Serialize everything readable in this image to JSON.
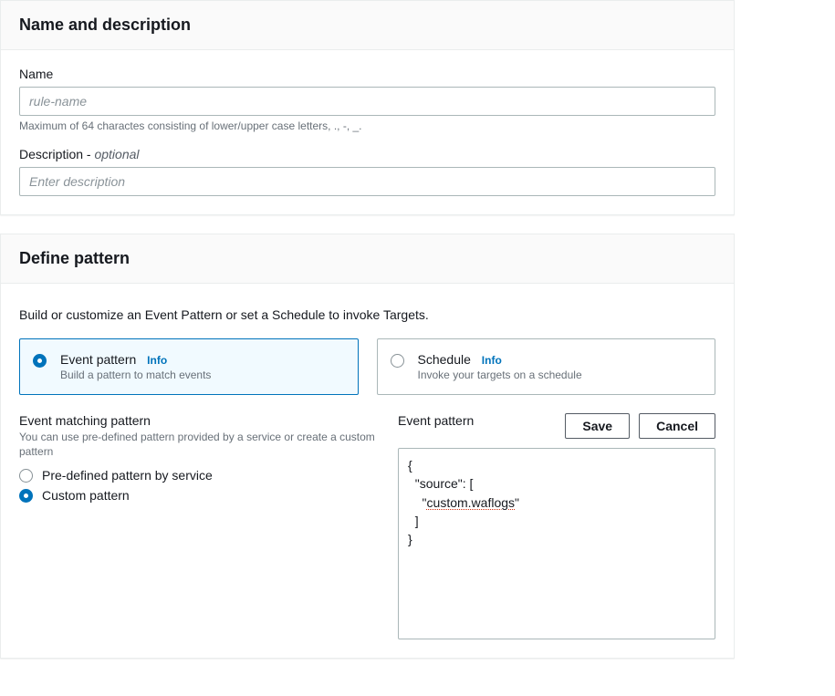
{
  "panel1": {
    "title": "Name and description",
    "name": {
      "label": "Name",
      "placeholder": "rule-name",
      "value": "",
      "hint": "Maximum of 64 charactes consisting of lower/upper case letters, ., -, _."
    },
    "description": {
      "label_prefix": "Description - ",
      "label_optional": "optional",
      "placeholder": "Enter description",
      "value": ""
    }
  },
  "panel2": {
    "title": "Define pattern",
    "intro": "Build or customize an Event Pattern or set a Schedule to invoke Targets.",
    "choices": {
      "event_pattern": {
        "title": "Event pattern",
        "info": "Info",
        "desc": "Build a pattern to match events",
        "selected": true
      },
      "schedule": {
        "title": "Schedule",
        "info": "Info",
        "desc": "Invoke your targets on a schedule",
        "selected": false
      }
    },
    "matching": {
      "title": "Event matching pattern",
      "hint": "You can use pre-defined pattern provided by a service or create a custom pattern",
      "predef": {
        "label": "Pre-defined pattern by service",
        "selected": false
      },
      "custom": {
        "label": "Custom pattern",
        "selected": true
      }
    },
    "right": {
      "title": "Event pattern",
      "save": "Save",
      "cancel": "Cancel",
      "json_prefix": "{\n  \"source\": [\n    \"",
      "json_squiggle": "custom.waflogs",
      "json_suffix": "\"\n  ]\n}"
    }
  },
  "colors": {
    "accent": "#0073bb",
    "selected_bg": "#f1faff",
    "border": "#aab7b8",
    "panel_border": "#eaeded",
    "hint": "#687078",
    "text": "#16191f"
  }
}
